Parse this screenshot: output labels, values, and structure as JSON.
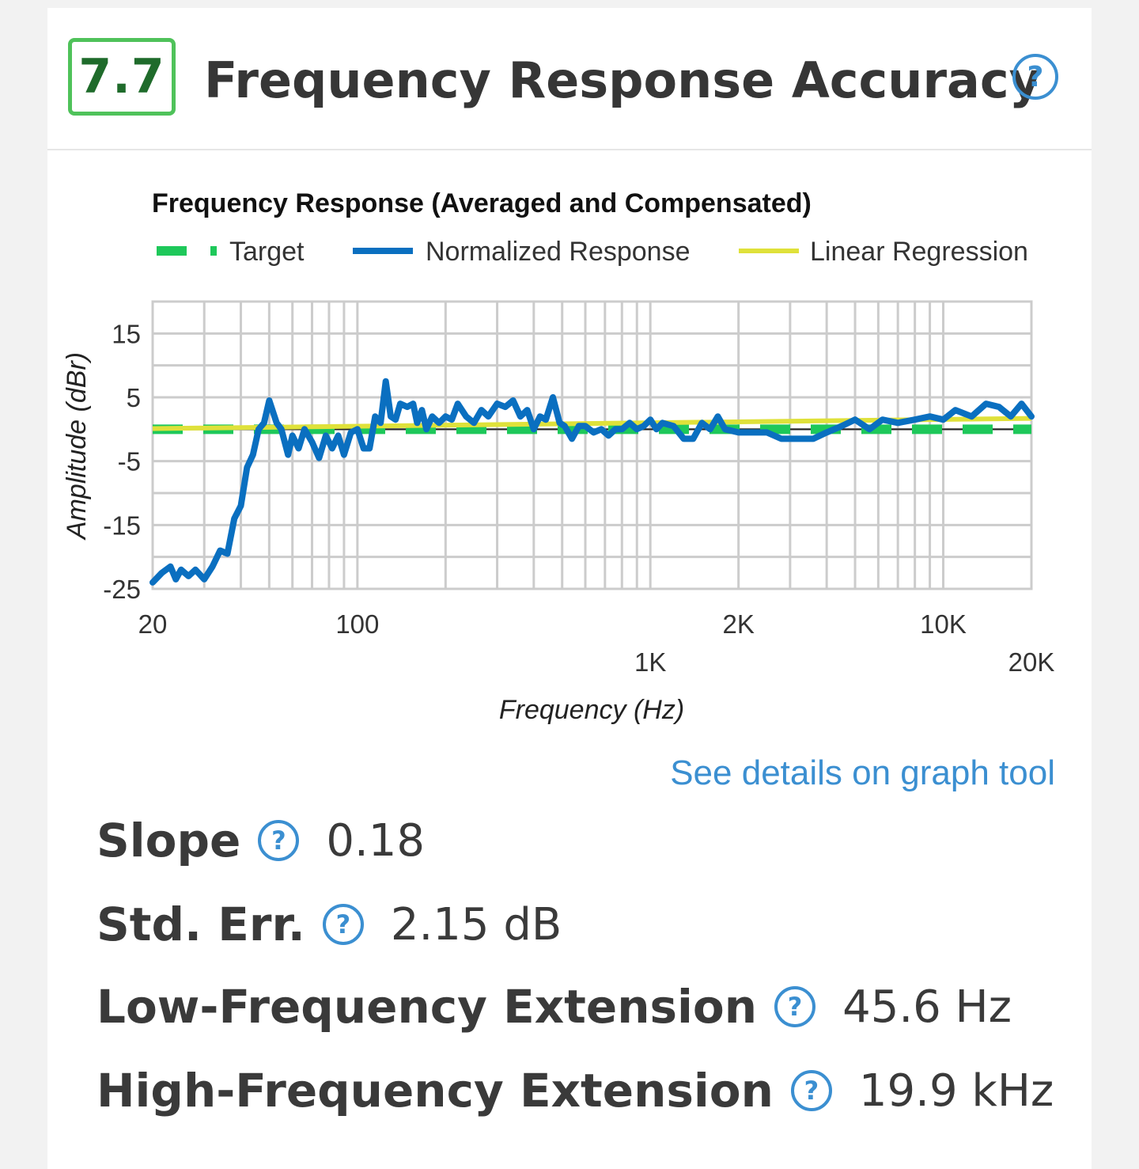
{
  "header": {
    "score": "7.7",
    "title": "Frequency Response Accuracy",
    "help_glyph": "?"
  },
  "colors": {
    "score_border": "#4fc25a",
    "target": "#1ec85a",
    "response": "#0a6fc0",
    "regression": "#dfe13a",
    "help": "#3b8fd1"
  },
  "chart_data": {
    "type": "line",
    "title": "Frequency Response (Averaged and Compensated)",
    "xlabel": "Frequency (Hz)",
    "ylabel": "Amplitude (dBr)",
    "xscale": "log",
    "xlim": [
      20,
      20000
    ],
    "ylim": [
      -25,
      20
    ],
    "yticks": [
      15,
      5,
      -5,
      -15,
      -25
    ],
    "xtick_labels": [
      {
        "value": 20,
        "label": "20",
        "row": 1
      },
      {
        "value": 100,
        "label": "100",
        "row": 1
      },
      {
        "value": 1000,
        "label": "1K",
        "row": 2
      },
      {
        "value": 2000,
        "label": "2K",
        "row": 1
      },
      {
        "value": 10000,
        "label": "10K",
        "row": 1
      },
      {
        "value": 20000,
        "label": "20K",
        "row": 2
      }
    ],
    "grid": true,
    "legend_position": "top",
    "series": [
      {
        "name": "Target",
        "style": "dashed",
        "x": [
          20,
          20000
        ],
        "y": [
          0,
          0
        ]
      },
      {
        "name": "Normalized Response",
        "style": "solid",
        "x": [
          20,
          21.5,
          23,
          24,
          25,
          26.5,
          28,
          30,
          32,
          34,
          36,
          38,
          40,
          42,
          44,
          46,
          48,
          50,
          53,
          55,
          58,
          60,
          63,
          66,
          70,
          74,
          78,
          82,
          86,
          90,
          95,
          100,
          105,
          110,
          115,
          120,
          125,
          130,
          135,
          140,
          148,
          155,
          160,
          166,
          172,
          180,
          190,
          200,
          210,
          220,
          235,
          250,
          265,
          280,
          300,
          320,
          340,
          360,
          380,
          400,
          420,
          440,
          465,
          490,
          510,
          540,
          570,
          600,
          640,
          680,
          720,
          760,
          800,
          850,
          900,
          950,
          1000,
          1050,
          1100,
          1200,
          1300,
          1400,
          1500,
          1600,
          1700,
          1800,
          2000,
          2200,
          2500,
          2800,
          3200,
          3600,
          4000,
          4500,
          5000,
          5600,
          6200,
          7000,
          8000,
          9000,
          10000,
          11000,
          12500,
          14000,
          15500,
          17000,
          18500,
          20000
        ],
        "y": [
          -24,
          -22.5,
          -21.5,
          -23.5,
          -22,
          -23,
          -22,
          -23.5,
          -21.5,
          -19,
          -19.5,
          -14,
          -12,
          -6,
          -4,
          0,
          1,
          4.5,
          1,
          0,
          -4,
          -1,
          -3,
          0,
          -2,
          -4.5,
          -1,
          -3,
          -1,
          -4,
          -0.5,
          0,
          -3,
          -3,
          2,
          1,
          7.5,
          2,
          1.5,
          4,
          3.5,
          4,
          1,
          3,
          0,
          2,
          1,
          2,
          1.5,
          4,
          2,
          1,
          3,
          2,
          4,
          3.5,
          4.5,
          2,
          3,
          0,
          2,
          1.5,
          5,
          1,
          0.5,
          -1.5,
          0.5,
          0.5,
          -0.5,
          0,
          -1,
          0,
          0,
          1,
          0,
          0.5,
          1.5,
          0,
          1,
          0.5,
          -1.5,
          -1.5,
          1,
          0,
          2,
          0,
          -0.5,
          -0.5,
          -0.5,
          -1.5,
          -1.5,
          -1.5,
          -0.5,
          0.5,
          1.5,
          0,
          1.5,
          1,
          1.5,
          2,
          1.5,
          3,
          2,
          4,
          3.5,
          2,
          4,
          2
        ]
      },
      {
        "name": "Linear Regression",
        "style": "solid",
        "x": [
          20,
          20000
        ],
        "y": [
          0.1,
          1.7
        ]
      }
    ]
  },
  "details_link": "See details on graph tool",
  "stats": [
    {
      "label": "Slope",
      "value": "0.18"
    },
    {
      "label": "Std. Err.",
      "value": "2.15 dB"
    },
    {
      "label": "Low-Frequency Extension",
      "value": "45.6 Hz"
    },
    {
      "label": "High-Frequency Extension",
      "value": "19.9 kHz"
    }
  ]
}
